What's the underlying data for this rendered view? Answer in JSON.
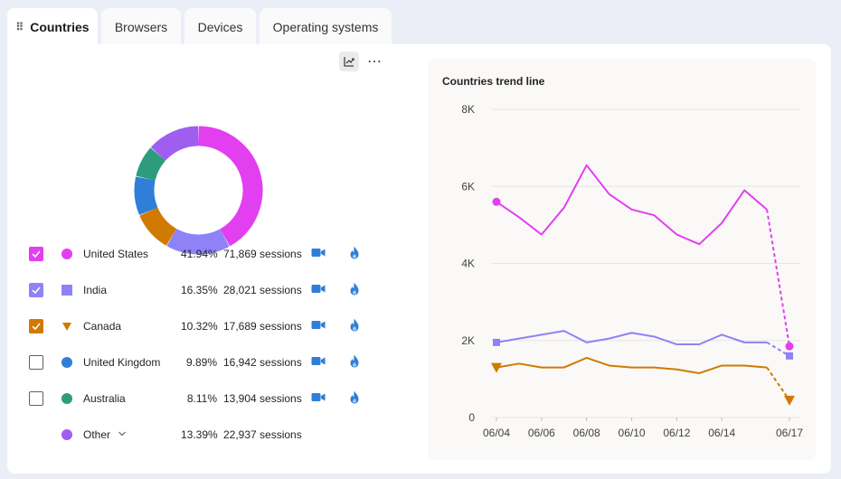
{
  "tabs": [
    {
      "label": "Countries",
      "active": true
    },
    {
      "label": "Browsers",
      "active": false
    },
    {
      "label": "Devices",
      "active": false
    },
    {
      "label": "Operating systems",
      "active": false
    }
  ],
  "toolbar": {
    "more_label": "⋯"
  },
  "legend": [
    {
      "country": "United States",
      "percent": "41.94%",
      "sessions": "71,869 sessions",
      "checked": true,
      "has_checkbox": true,
      "color": "#e43ba6",
      "marker": "circle",
      "value": 41.94
    },
    {
      "country": "India",
      "percent": "16.35%",
      "sessions": "28,021 sessions",
      "checked": true,
      "has_checkbox": true,
      "color": "#8e82f6",
      "marker": "square",
      "value": 16.35
    },
    {
      "country": "Canada",
      "percent": "10.32%",
      "sessions": "17,689 sessions",
      "checked": true,
      "has_checkbox": true,
      "color": "#d07a00",
      "marker": "triangle",
      "value": 10.32
    },
    {
      "country": "United Kingdom",
      "percent": "9.89%",
      "sessions": "16,942 sessions",
      "checked": false,
      "has_checkbox": true,
      "color": "#2f7fd8",
      "marker": "circle",
      "value": 9.89
    },
    {
      "country": "Australia",
      "percent": "8.11%",
      "sessions": "13,904 sessions",
      "checked": false,
      "has_checkbox": true,
      "color": "#2d9c7e",
      "marker": "circle",
      "value": 8.11
    },
    {
      "country": "Other",
      "percent": "13.39%",
      "sessions": "22,937 sessions",
      "checked": false,
      "has_checkbox": false,
      "color": "#a05ef0",
      "marker": "circle",
      "value": 13.39
    }
  ],
  "colors": {
    "united_states": "#e23ff0",
    "india": "#8e82f6",
    "canada": "#d07a00",
    "united_kingdom": "#2f7fd8",
    "australia": "#2d9c7e",
    "other": "#a05ef0",
    "checkbox_accent": "#d07a00",
    "icon_blue": "#2f7fd8"
  },
  "icons": {
    "row_action_1": "video-camera-icon",
    "row_action_2": "flame-icon",
    "chart_toggle": "trend-chart-icon",
    "expand": "chevron-down-icon"
  },
  "chart_data": [
    {
      "type": "pie",
      "categories": [
        "United States",
        "India",
        "Canada",
        "United Kingdom",
        "Australia",
        "Other"
      ],
      "values": [
        41.94,
        16.35,
        10.32,
        9.89,
        8.11,
        13.39
      ]
    },
    {
      "type": "line",
      "title": "Countries trend line",
      "x": [
        "06/04",
        "06/05",
        "06/06",
        "06/07",
        "06/08",
        "06/09",
        "06/10",
        "06/11",
        "06/12",
        "06/13",
        "06/14",
        "06/15",
        "06/16",
        "06/17"
      ],
      "x_tick_labels": [
        "06/04",
        "06/06",
        "06/08",
        "06/10",
        "06/12",
        "06/14",
        "06/17"
      ],
      "y_tick_labels": [
        "0",
        "2K",
        "4K",
        "6K",
        "8K"
      ],
      "ylim": [
        0,
        8000
      ],
      "grid": true,
      "series": [
        {
          "name": "United States",
          "values": [
            5600,
            5200,
            4750,
            5450,
            6550,
            5800,
            5400,
            5250,
            4750,
            4500,
            5050,
            5900,
            5400,
            1850
          ],
          "projected_last": true
        },
        {
          "name": "India",
          "values": [
            1950,
            2050,
            2150,
            2250,
            1950,
            2050,
            2200,
            2100,
            1900,
            1900,
            2150,
            1950,
            1950,
            1600
          ],
          "projected_last": true
        },
        {
          "name": "Canada",
          "values": [
            1300,
            1400,
            1300,
            1300,
            1550,
            1350,
            1300,
            1300,
            1250,
            1150,
            1350,
            1350,
            1300,
            450
          ],
          "projected_last": true
        }
      ]
    }
  ]
}
